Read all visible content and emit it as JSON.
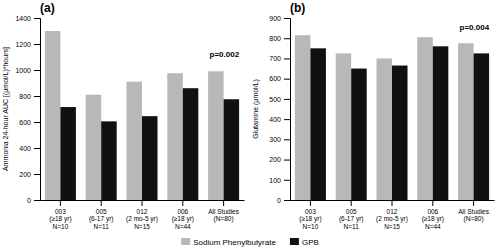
{
  "chart_data": [
    {
      "type": "bar",
      "title": "(a)",
      "ylabel": "Ammonia 24-hour AUC [(μmol/L)*hours]",
      "categories": [
        "003\n(≥18 yr)\nN=10",
        "005\n(6-17 yr)\nN=11",
        "012\n(2 mo-5 yr)\nN=15",
        "006\n(≥18 yr)\nN=44",
        "All Studies\n(N=80)"
      ],
      "series": [
        {
          "name": "Sodium Phenylbutyrate",
          "color": "#b8b8b8",
          "values": [
            1300,
            810,
            910,
            975,
            990
          ]
        },
        {
          "name": "GPB",
          "color": "#111111",
          "values": [
            715,
            605,
            645,
            860,
            775
          ]
        }
      ],
      "ylim": [
        0,
        1400
      ],
      "yticks": [
        0,
        200,
        400,
        600,
        800,
        1000,
        1200,
        1400
      ],
      "annotations": [
        {
          "text": "p=0.002",
          "y": 1100
        }
      ],
      "legend": "bottom"
    },
    {
      "type": "bar",
      "title": "(b)",
      "ylabel": "Glutamine (μmol/L)",
      "categories": [
        "003\n(≥18 yr)\nN=10",
        "005\n(6-17 yr)\nN=11",
        "012\n(2 mo-5 yr)\nN=15",
        "006\n(≥18 yr)\nN=44",
        "All Studies\n(N=80)"
      ],
      "series": [
        {
          "name": "Sodium Phenylbutyrate",
          "color": "#b8b8b8",
          "values": [
            815,
            725,
            700,
            805,
            775
          ]
        },
        {
          "name": "GPB",
          "color": "#111111",
          "values": [
            750,
            650,
            665,
            760,
            725
          ]
        }
      ],
      "ylim": [
        0,
        900
      ],
      "yticks": [
        0,
        100,
        200,
        300,
        400,
        500,
        600,
        700,
        800,
        900
      ],
      "annotations": [
        {
          "text": "p=0.004",
          "y": 840
        }
      ]
    }
  ]
}
